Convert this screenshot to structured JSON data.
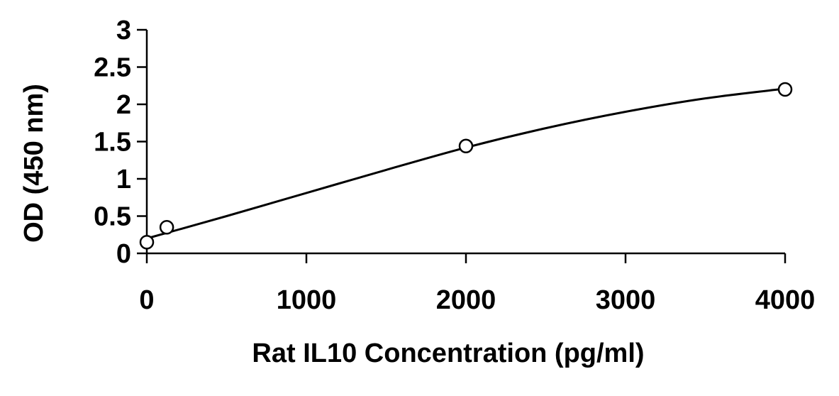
{
  "chart_data": {
    "type": "scatter",
    "title": "",
    "xlabel": "Rat IL10 Concentration (pg/ml)",
    "ylabel": "OD (450 nm)",
    "xlim": [
      0,
      4000
    ],
    "ylim": [
      0,
      3
    ],
    "x_ticks": [
      "0",
      "1000",
      "2000",
      "3000",
      "4000"
    ],
    "y_ticks": [
      "0",
      "0.5",
      "1",
      "1.5",
      "2",
      "2.5",
      "3"
    ],
    "grid": false,
    "legend": "none",
    "series": [
      {
        "points": [
          {
            "x": 0,
            "y": 0.15
          },
          {
            "x": 125,
            "y": 0.35
          },
          {
            "x": 2000,
            "y": 1.44
          },
          {
            "x": 4000,
            "y": 2.2
          }
        ],
        "fit_curve": [
          {
            "x": 0,
            "y": 0.2
          },
          {
            "x": 500,
            "y": 0.5
          },
          {
            "x": 1000,
            "y": 0.81
          },
          {
            "x": 1500,
            "y": 1.12
          },
          {
            "x": 2000,
            "y": 1.42
          },
          {
            "x": 2500,
            "y": 1.68
          },
          {
            "x": 3000,
            "y": 1.9
          },
          {
            "x": 3500,
            "y": 2.08
          },
          {
            "x": 4000,
            "y": 2.21
          }
        ]
      }
    ]
  }
}
